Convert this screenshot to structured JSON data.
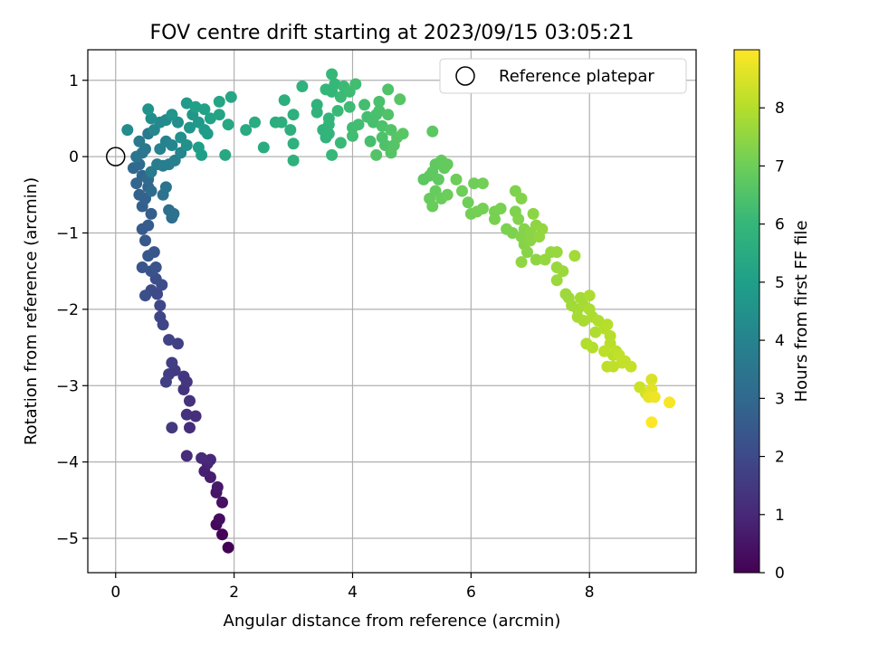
{
  "chart_data": {
    "type": "scatter",
    "title": "FOV centre drift starting at 2023/09/15 03:05:21",
    "xlabel": "Angular distance from reference (arcmin)",
    "ylabel": "Rotation from reference (arcmin)",
    "colorbar_label": "Hours from first FF file",
    "xlim": [
      -0.47,
      9.8
    ],
    "ylim": [
      -5.45,
      1.4
    ],
    "clim": [
      0,
      9.0
    ],
    "x_ticks": [
      0,
      2,
      4,
      6,
      8
    ],
    "y_ticks": [
      1,
      0,
      -1,
      -2,
      -3,
      -4,
      -5
    ],
    "colorbar_ticks": [
      0,
      1,
      2,
      3,
      4,
      5,
      6,
      7,
      8
    ],
    "colormap": "viridis",
    "grid": true,
    "legend": {
      "position": "top-right",
      "entries": [
        "Reference platepar"
      ]
    },
    "reference_point": {
      "x": 0,
      "y": 0,
      "label": "Reference platepar"
    },
    "points": [
      [
        1.9,
        -5.12,
        0.0
      ],
      [
        1.8,
        -4.95,
        0.1
      ],
      [
        1.7,
        -4.82,
        0.2
      ],
      [
        1.75,
        -4.75,
        0.3
      ],
      [
        1.8,
        -4.53,
        0.4
      ],
      [
        1.7,
        -4.4,
        0.5
      ],
      [
        1.72,
        -4.33,
        0.6
      ],
      [
        1.6,
        -4.2,
        0.7
      ],
      [
        1.5,
        -4.12,
        0.8
      ],
      [
        1.55,
        -4.02,
        0.9
      ],
      [
        1.6,
        -3.97,
        1.0
      ],
      [
        1.45,
        -3.95,
        1.05
      ],
      [
        1.2,
        -3.92,
        1.1
      ],
      [
        1.25,
        -3.55,
        1.15
      ],
      [
        1.35,
        -3.4,
        1.2
      ],
      [
        1.2,
        -3.38,
        1.25
      ],
      [
        1.25,
        -3.2,
        1.3
      ],
      [
        1.15,
        -3.05,
        1.35
      ],
      [
        1.2,
        -2.95,
        1.4
      ],
      [
        1.15,
        -2.88,
        1.45
      ],
      [
        0.95,
        -3.55,
        1.5
      ],
      [
        1.0,
        -2.8,
        1.55
      ],
      [
        0.9,
        -2.85,
        1.6
      ],
      [
        0.95,
        -2.7,
        1.65
      ],
      [
        0.85,
        -2.95,
        1.7
      ],
      [
        1.05,
        -2.45,
        1.75
      ],
      [
        0.9,
        -2.4,
        1.8
      ],
      [
        0.8,
        -2.2,
        1.85
      ],
      [
        0.75,
        -2.1,
        1.9
      ],
      [
        0.75,
        -1.95,
        1.95
      ],
      [
        0.7,
        -1.8,
        2.0
      ],
      [
        0.6,
        -1.75,
        2.05
      ],
      [
        0.78,
        -1.68,
        2.1
      ],
      [
        0.68,
        -1.6,
        2.15
      ],
      [
        0.5,
        -1.82,
        2.2
      ],
      [
        0.6,
        -1.5,
        2.25
      ],
      [
        0.68,
        -1.45,
        2.3
      ],
      [
        0.45,
        -1.45,
        2.35
      ],
      [
        0.65,
        -1.25,
        2.4
      ],
      [
        0.55,
        -1.3,
        2.45
      ],
      [
        0.5,
        -1.1,
        2.5
      ],
      [
        0.45,
        -0.95,
        2.55
      ],
      [
        0.55,
        -0.9,
        2.6
      ],
      [
        0.6,
        -0.75,
        2.65
      ],
      [
        0.45,
        -0.65,
        2.7
      ],
      [
        0.5,
        -0.55,
        2.75
      ],
      [
        0.4,
        -0.5,
        2.8
      ],
      [
        0.55,
        -0.4,
        2.85
      ],
      [
        0.35,
        -0.35,
        2.9
      ],
      [
        0.45,
        -0.25,
        2.95
      ],
      [
        0.3,
        -0.15,
        3.0
      ],
      [
        0.4,
        -0.1,
        3.05
      ],
      [
        0.55,
        -0.3,
        3.1
      ],
      [
        0.6,
        -0.45,
        3.15
      ],
      [
        0.95,
        -0.8,
        3.2
      ],
      [
        0.9,
        -0.7,
        3.25
      ],
      [
        0.98,
        -0.75,
        3.3
      ],
      [
        0.8,
        -0.5,
        3.35
      ],
      [
        0.85,
        -0.4,
        3.4
      ],
      [
        0.35,
        0.0,
        3.45
      ],
      [
        0.45,
        0.05,
        3.5
      ],
      [
        0.5,
        0.1,
        3.55
      ],
      [
        0.4,
        0.2,
        3.6
      ],
      [
        0.55,
        0.3,
        3.65
      ],
      [
        0.6,
        -0.2,
        3.7
      ],
      [
        0.7,
        -0.1,
        3.75
      ],
      [
        0.8,
        -0.12,
        3.8
      ],
      [
        0.9,
        -0.1,
        3.85
      ],
      [
        1.0,
        -0.05,
        3.9
      ],
      [
        0.75,
        0.1,
        3.95
      ],
      [
        0.85,
        0.2,
        4.0
      ],
      [
        0.95,
        0.15,
        4.05
      ],
      [
        1.1,
        0.05,
        4.1
      ],
      [
        0.65,
        0.35,
        4.15
      ],
      [
        0.75,
        0.45,
        4.2
      ],
      [
        0.85,
        0.48,
        4.25
      ],
      [
        0.2,
        0.35,
        4.3
      ],
      [
        0.6,
        0.5,
        4.35
      ],
      [
        1.05,
        0.45,
        4.4
      ],
      [
        1.1,
        0.25,
        4.45
      ],
      [
        1.2,
        0.15,
        4.5
      ],
      [
        0.55,
        0.62,
        4.55
      ],
      [
        0.95,
        0.55,
        4.6
      ],
      [
        1.25,
        0.38,
        4.65
      ],
      [
        1.3,
        0.55,
        4.7
      ],
      [
        1.4,
        0.45,
        4.75
      ],
      [
        1.2,
        0.7,
        4.8
      ],
      [
        1.5,
        0.35,
        4.85
      ],
      [
        1.55,
        0.3,
        4.9
      ],
      [
        1.4,
        0.12,
        4.95
      ],
      [
        1.45,
        0.02,
        5.0
      ],
      [
        1.35,
        0.65,
        5.05
      ],
      [
        1.5,
        0.62,
        5.1
      ],
      [
        1.6,
        0.5,
        5.15
      ],
      [
        1.75,
        0.55,
        5.2
      ],
      [
        1.75,
        0.72,
        5.25
      ],
      [
        1.95,
        0.78,
        5.3
      ],
      [
        1.9,
        0.42,
        5.35
      ],
      [
        1.85,
        0.02,
        5.4
      ],
      [
        2.2,
        0.35,
        5.45
      ],
      [
        2.35,
        0.45,
        5.5
      ],
      [
        2.5,
        0.12,
        5.55
      ],
      [
        2.7,
        0.45,
        5.6
      ],
      [
        2.8,
        0.45,
        5.62
      ],
      [
        2.85,
        0.74,
        5.65
      ],
      [
        2.95,
        0.35,
        5.68
      ],
      [
        3.0,
        0.55,
        5.7
      ],
      [
        3.0,
        0.17,
        5.72
      ],
      [
        3.0,
        -0.05,
        5.75
      ],
      [
        3.15,
        0.92,
        5.78
      ],
      [
        3.4,
        0.68,
        5.8
      ],
      [
        3.4,
        0.58,
        5.82
      ],
      [
        3.5,
        0.35,
        5.85
      ],
      [
        3.55,
        0.25,
        5.87
      ],
      [
        3.6,
        0.3,
        5.9
      ],
      [
        3.6,
        0.5,
        5.92
      ],
      [
        3.6,
        0.42,
        5.95
      ],
      [
        3.55,
        0.88,
        5.97
      ],
      [
        3.65,
        0.85,
        6.0
      ],
      [
        3.7,
        0.95,
        6.02
      ],
      [
        3.65,
        1.08,
        6.05
      ],
      [
        3.65,
        0.02,
        6.07
      ],
      [
        3.8,
        0.18,
        6.1
      ],
      [
        3.75,
        0.6,
        6.12
      ],
      [
        3.8,
        0.78,
        6.14
      ],
      [
        3.85,
        0.92,
        6.16
      ],
      [
        3.95,
        0.65,
        6.18
      ],
      [
        3.95,
        0.85,
        6.2
      ],
      [
        4.0,
        0.38,
        6.22
      ],
      [
        4.0,
        0.27,
        6.24
      ],
      [
        4.05,
        0.95,
        6.26
      ],
      [
        4.1,
        0.42,
        6.28
      ],
      [
        4.2,
        0.68,
        6.3
      ],
      [
        4.25,
        0.52,
        6.32
      ],
      [
        4.3,
        0.2,
        6.34
      ],
      [
        4.35,
        0.45,
        6.36
      ],
      [
        4.4,
        0.55,
        6.38
      ],
      [
        4.45,
        0.72,
        6.4
      ],
      [
        4.45,
        0.6,
        6.42
      ],
      [
        4.5,
        0.4,
        6.44
      ],
      [
        4.5,
        0.25,
        6.46
      ],
      [
        4.55,
        0.15,
        6.48
      ],
      [
        4.6,
        0.88,
        6.5
      ],
      [
        4.6,
        0.55,
        6.52
      ],
      [
        4.65,
        0.35,
        6.54
      ],
      [
        4.4,
        0.02,
        6.56
      ],
      [
        4.65,
        0.05,
        6.58
      ],
      [
        4.7,
        0.15,
        6.6
      ],
      [
        4.75,
        0.25,
        6.62
      ],
      [
        4.8,
        0.75,
        6.64
      ],
      [
        4.85,
        0.3,
        6.66
      ],
      [
        5.35,
        0.33,
        6.7
      ],
      [
        5.2,
        -0.3,
        6.72
      ],
      [
        5.3,
        -0.25,
        6.74
      ],
      [
        5.35,
        -0.2,
        6.76
      ],
      [
        5.4,
        -0.1,
        6.78
      ],
      [
        5.45,
        -0.3,
        6.8
      ],
      [
        5.5,
        -0.05,
        6.82
      ],
      [
        5.55,
        -0.15,
        6.84
      ],
      [
        5.6,
        -0.1,
        6.86
      ],
      [
        5.4,
        -0.45,
        6.88
      ],
      [
        5.3,
        -0.55,
        6.9
      ],
      [
        5.35,
        -0.65,
        6.92
      ],
      [
        5.5,
        -0.55,
        6.94
      ],
      [
        5.6,
        -0.5,
        6.96
      ],
      [
        5.75,
        -0.3,
        6.98
      ],
      [
        5.85,
        -0.45,
        7.0
      ],
      [
        5.95,
        -0.6,
        7.02
      ],
      [
        6.05,
        -0.35,
        7.04
      ],
      [
        6.2,
        -0.35,
        7.06
      ],
      [
        6.0,
        -0.75,
        7.08
      ],
      [
        6.1,
        -0.72,
        7.1
      ],
      [
        6.2,
        -0.68,
        7.12
      ],
      [
        6.4,
        -0.72,
        7.14
      ],
      [
        6.4,
        -0.82,
        7.16
      ],
      [
        6.5,
        -0.68,
        7.18
      ],
      [
        6.6,
        -0.95,
        7.2
      ],
      [
        6.7,
        -1.0,
        7.22
      ],
      [
        6.75,
        -0.45,
        7.24
      ],
      [
        6.75,
        -0.72,
        7.26
      ],
      [
        6.8,
        -0.82,
        7.28
      ],
      [
        6.85,
        -0.55,
        7.3
      ],
      [
        6.85,
        -1.05,
        7.32
      ],
      [
        6.9,
        -0.95,
        7.34
      ],
      [
        6.9,
        -1.15,
        7.36
      ],
      [
        6.95,
        -1.25,
        7.38
      ],
      [
        7.0,
        -1.0,
        7.4
      ],
      [
        7.0,
        -1.1,
        7.42
      ],
      [
        7.05,
        -0.75,
        7.44
      ],
      [
        7.1,
        -1.35,
        7.46
      ],
      [
        7.1,
        -0.9,
        7.48
      ],
      [
        6.85,
        -1.38,
        7.5
      ],
      [
        7.15,
        -1.05,
        7.52
      ],
      [
        7.2,
        -0.95,
        7.54
      ],
      [
        7.25,
        -1.35,
        7.56
      ],
      [
        7.35,
        -1.25,
        7.58
      ],
      [
        7.45,
        -1.25,
        7.6
      ],
      [
        7.45,
        -1.45,
        7.62
      ],
      [
        7.45,
        -1.62,
        7.64
      ],
      [
        7.55,
        -1.5,
        7.66
      ],
      [
        7.6,
        -1.8,
        7.68
      ],
      [
        7.65,
        -1.85,
        7.7
      ],
      [
        7.7,
        -1.95,
        7.72
      ],
      [
        7.75,
        -1.3,
        7.74
      ],
      [
        7.8,
        -2.0,
        7.76
      ],
      [
        7.85,
        -1.85,
        7.78
      ],
      [
        7.9,
        -1.95,
        7.8
      ],
      [
        7.8,
        -2.1,
        7.82
      ],
      [
        7.9,
        -2.15,
        7.84
      ],
      [
        8.0,
        -2.0,
        7.86
      ],
      [
        8.0,
        -1.82,
        7.88
      ],
      [
        8.05,
        -2.1,
        7.9
      ],
      [
        8.1,
        -2.3,
        7.92
      ],
      [
        8.15,
        -2.15,
        7.94
      ],
      [
        7.95,
        -2.45,
        7.96
      ],
      [
        8.05,
        -2.5,
        7.98
      ],
      [
        8.25,
        -2.25,
        8.0
      ],
      [
        8.3,
        -2.2,
        8.02
      ],
      [
        8.35,
        -2.35,
        8.04
      ],
      [
        8.35,
        -2.45,
        8.06
      ],
      [
        8.4,
        -2.6,
        8.08
      ],
      [
        8.45,
        -2.55,
        8.1
      ],
      [
        8.25,
        -2.55,
        8.12
      ],
      [
        8.3,
        -2.75,
        8.14
      ],
      [
        8.4,
        -2.75,
        8.16
      ],
      [
        8.5,
        -2.6,
        8.18
      ],
      [
        8.55,
        -2.7,
        8.2
      ],
      [
        8.6,
        -2.68,
        8.22
      ],
      [
        8.7,
        -2.75,
        8.24
      ],
      [
        8.85,
        -3.02,
        8.3
      ],
      [
        8.95,
        -3.1,
        8.4
      ],
      [
        9.05,
        -2.92,
        8.5
      ],
      [
        9.05,
        -3.05,
        8.6
      ],
      [
        9.0,
        -3.15,
        8.7
      ],
      [
        9.1,
        -3.15,
        8.8
      ],
      [
        9.35,
        -3.22,
        8.9
      ],
      [
        9.05,
        -3.48,
        9.0
      ]
    ]
  }
}
